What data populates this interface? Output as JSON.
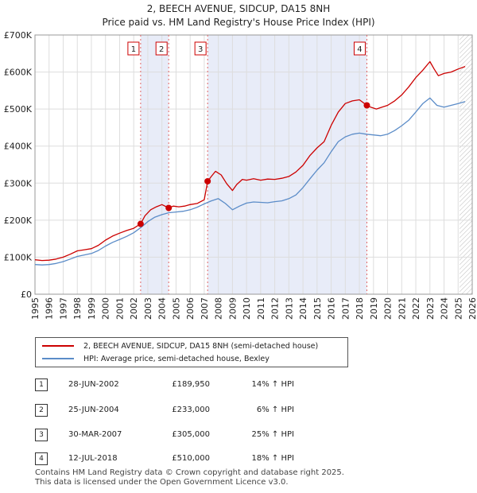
{
  "title_line1": "2, BEECH AVENUE, SIDCUP, DA15 8NH",
  "title_line2": "Price paid vs. HM Land Registry's House Price Index (HPI)",
  "chart_data": {
    "type": "line",
    "xlim": [
      1995,
      2026
    ],
    "ylim": [
      0,
      700000
    ],
    "y_ticks": [
      0,
      100000,
      200000,
      300000,
      400000,
      500000,
      600000,
      700000
    ],
    "y_tick_labels": [
      "£0",
      "£100K",
      "£200K",
      "£300K",
      "£400K",
      "£500K",
      "£600K",
      "£700K"
    ],
    "x_ticks": [
      1995,
      1996,
      1997,
      1998,
      1999,
      2000,
      2001,
      2002,
      2003,
      2004,
      2005,
      2006,
      2007,
      2008,
      2009,
      2010,
      2011,
      2012,
      2013,
      2014,
      2015,
      2016,
      2017,
      2018,
      2019,
      2020,
      2021,
      2022,
      2023,
      2024,
      2025,
      2026
    ],
    "x_tick_labels": [
      "1995",
      "1996",
      "1997",
      "1998",
      "1999",
      "2000",
      "2001",
      "2002",
      "2003",
      "2004",
      "2005",
      "2006",
      "2007",
      "2008",
      "2009",
      "2010",
      "2011",
      "2012",
      "2013",
      "2014",
      "2015",
      "2016",
      "2017",
      "2018",
      "2019",
      "2020",
      "2021",
      "2022",
      "2023",
      "2024",
      "2025",
      "2026"
    ],
    "forecast_start": 2025.1,
    "series": [
      {
        "name": "2, BEECH AVENUE, SIDCUP, DA15 8NH (semi-detached house)",
        "color": "#cc0000",
        "x": [
          1995.0,
          1995.5,
          1996.0,
          1996.5,
          1997.0,
          1997.5,
          1998.0,
          1998.5,
          1999.0,
          1999.5,
          2000.0,
          2000.5,
          2001.0,
          2001.5,
          2002.0,
          2002.49,
          2002.8,
          2003.2,
          2003.6,
          2004.0,
          2004.48,
          2004.8,
          2005.2,
          2005.6,
          2006.0,
          2006.5,
          2007.0,
          2007.24,
          2007.5,
          2007.8,
          2008.2,
          2008.6,
          2009.0,
          2009.3,
          2009.7,
          2010.0,
          2010.5,
          2011.0,
          2011.5,
          2012.0,
          2012.5,
          2013.0,
          2013.5,
          2014.0,
          2014.5,
          2015.0,
          2015.5,
          2016.0,
          2016.5,
          2017.0,
          2017.5,
          2018.0,
          2018.53,
          2018.8,
          2019.2,
          2019.6,
          2020.0,
          2020.5,
          2021.0,
          2021.5,
          2022.0,
          2022.5,
          2023.0,
          2023.3,
          2023.6,
          2024.0,
          2024.5,
          2025.0,
          2025.5
        ],
        "y": [
          93000,
          91000,
          92000,
          95000,
          100000,
          108000,
          117000,
          120000,
          123000,
          132000,
          146000,
          157000,
          165000,
          172000,
          178000,
          189950,
          212000,
          228000,
          236000,
          242000,
          233000,
          238000,
          236000,
          238000,
          242000,
          245000,
          255000,
          305000,
          318000,
          332000,
          322000,
          298000,
          280000,
          296000,
          310000,
          308000,
          312000,
          308000,
          311000,
          310000,
          313000,
          318000,
          330000,
          348000,
          375000,
          395000,
          412000,
          456000,
          492000,
          515000,
          522000,
          525000,
          510000,
          505000,
          500000,
          505000,
          510000,
          522000,
          538000,
          560000,
          585000,
          605000,
          628000,
          608000,
          590000,
          596000,
          600000,
          608000,
          615000
        ]
      },
      {
        "name": "HPI: Average price, semi-detached house, Bexley",
        "color": "#5b8cc8",
        "x": [
          1995.0,
          1995.5,
          1996.0,
          1996.5,
          1997.0,
          1997.5,
          1998.0,
          1998.5,
          1999.0,
          1999.5,
          2000.0,
          2000.5,
          2001.0,
          2001.5,
          2002.0,
          2002.5,
          2003.0,
          2003.5,
          2004.0,
          2004.5,
          2005.0,
          2005.5,
          2006.0,
          2006.5,
          2007.0,
          2007.5,
          2008.0,
          2008.5,
          2009.0,
          2009.5,
          2010.0,
          2010.5,
          2011.0,
          2011.5,
          2012.0,
          2012.5,
          2013.0,
          2013.5,
          2014.0,
          2014.5,
          2015.0,
          2015.5,
          2016.0,
          2016.5,
          2017.0,
          2017.5,
          2018.0,
          2018.5,
          2019.0,
          2019.5,
          2020.0,
          2020.5,
          2021.0,
          2021.5,
          2022.0,
          2022.5,
          2023.0,
          2023.5,
          2024.0,
          2024.5,
          2025.0,
          2025.5
        ],
        "y": [
          80000,
          79000,
          80000,
          83000,
          88000,
          95000,
          102000,
          106000,
          110000,
          118000,
          130000,
          140000,
          148000,
          156000,
          166000,
          180000,
          196000,
          208000,
          215000,
          220000,
          222000,
          224000,
          228000,
          235000,
          244000,
          252000,
          258000,
          245000,
          228000,
          238000,
          246000,
          249000,
          248000,
          247000,
          250000,
          252000,
          258000,
          268000,
          288000,
          312000,
          335000,
          355000,
          385000,
          412000,
          425000,
          432000,
          435000,
          432000,
          430000,
          428000,
          432000,
          442000,
          455000,
          470000,
          492000,
          515000,
          530000,
          510000,
          505000,
          510000,
          515000,
          520000
        ]
      }
    ],
    "sales": [
      {
        "label": "1",
        "x": 2002.49,
        "y": 189950
      },
      {
        "label": "2",
        "x": 2004.48,
        "y": 233000
      },
      {
        "label": "3",
        "x": 2007.24,
        "y": 305000
      },
      {
        "label": "4",
        "x": 2018.53,
        "y": 510000
      }
    ],
    "shaded_ranges": [
      [
        2002.49,
        2004.48
      ],
      [
        2007.24,
        2018.53
      ]
    ]
  },
  "legend": {
    "property_label": "2, BEECH AVENUE, SIDCUP, DA15 8NH (semi-detached house)",
    "hpi_label": "HPI: Average price, semi-detached house, Bexley",
    "property_color": "#cc0000",
    "hpi_color": "#5b8cc8"
  },
  "sales_table": [
    {
      "num": "1",
      "date": "28-JUN-2002",
      "price": "£189,950",
      "hpi": "14% ↑ HPI"
    },
    {
      "num": "2",
      "date": "25-JUN-2004",
      "price": "£233,000",
      "hpi": "6% ↑ HPI"
    },
    {
      "num": "3",
      "date": "30-MAR-2007",
      "price": "£305,000",
      "hpi": "25% ↑ HPI"
    },
    {
      "num": "4",
      "date": "12-JUL-2018",
      "price": "£510,000",
      "hpi": "18% ↑ HPI"
    }
  ],
  "footer_line1": "Contains HM Land Registry data © Crown copyright and database right 2025.",
  "footer_line2": "This data is licensed under the Open Government Licence v3.0."
}
